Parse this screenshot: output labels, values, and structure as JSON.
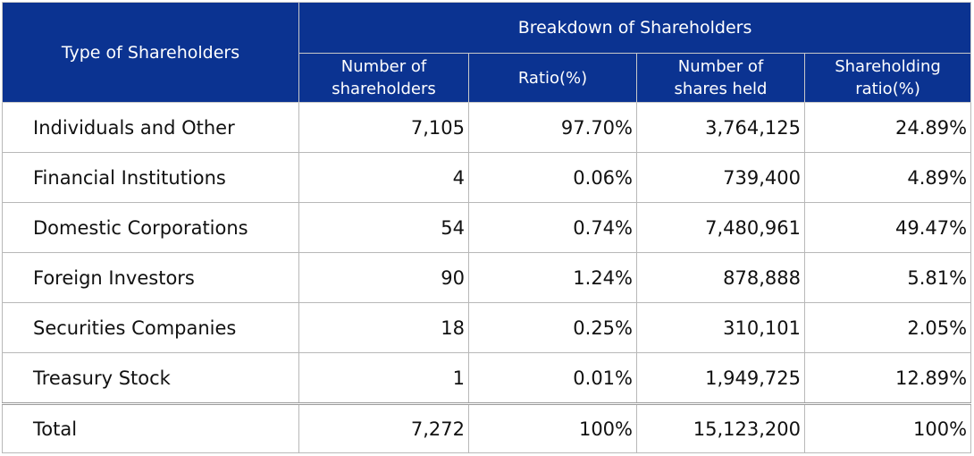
{
  "header": {
    "type_label": "Type of Shareholders",
    "group_label": "Breakdown of Shareholders",
    "columns": [
      {
        "line1": "Number of",
        "line2": "shareholders"
      },
      {
        "line1": "Ratio(%)",
        "line2": ""
      },
      {
        "line1": "Number of",
        "line2": "shares held"
      },
      {
        "line1": "Shareholding",
        "line2": "ratio(%)"
      }
    ]
  },
  "rows": [
    {
      "type": "Individuals and Other",
      "shareholders": "7,105",
      "ratio": "97.70%",
      "shares": "3,764,125",
      "share_ratio": "24.89%"
    },
    {
      "type": "Financial Institutions",
      "shareholders": "4",
      "ratio": "0.06%",
      "shares": "739,400",
      "share_ratio": "4.89%"
    },
    {
      "type": "Domestic Corporations",
      "shareholders": "54",
      "ratio": "0.74%",
      "shares": "7,480,961",
      "share_ratio": "49.47%"
    },
    {
      "type": "Foreign Investors",
      "shareholders": "90",
      "ratio": "1.24%",
      "shares": "878,888",
      "share_ratio": "5.81%"
    },
    {
      "type": "Securities Companies",
      "shareholders": "18",
      "ratio": "0.25%",
      "shares": "310,101",
      "share_ratio": "2.05%"
    },
    {
      "type": "Treasury Stock",
      "shareholders": "1",
      "ratio": "0.01%",
      "shares": "1,949,725",
      "share_ratio": "12.89%"
    }
  ],
  "total": {
    "type": "Total",
    "shareholders": "7,272",
    "ratio": "100%",
    "shares": "15,123,200",
    "share_ratio": "100%"
  },
  "colors": {
    "header_bg": "#0b3391",
    "header_text": "#ffffff"
  }
}
